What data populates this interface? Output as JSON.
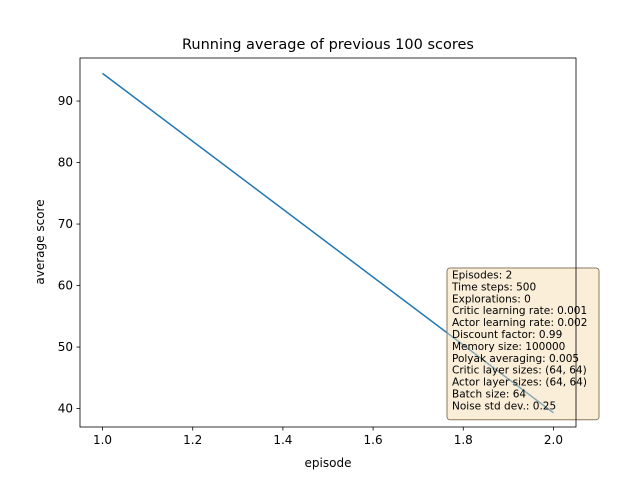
{
  "chart_data": {
    "type": "line",
    "title": "Running average of previous 100 scores",
    "xlabel": "episode",
    "ylabel": "average score",
    "xlim": [
      0.95,
      2.05
    ],
    "ylim": [
      37.0,
      97.0
    ],
    "x_ticks": [
      1.0,
      1.2,
      1.4,
      1.6,
      1.8,
      2.0
    ],
    "x_tick_labels": [
      "1.0",
      "1.2",
      "1.4",
      "1.6",
      "1.8",
      "2.0"
    ],
    "y_ticks": [
      40,
      50,
      60,
      70,
      80,
      90
    ],
    "y_tick_labels": [
      "40",
      "50",
      "60",
      "70",
      "80",
      "90"
    ],
    "grid": false,
    "series": [
      {
        "x": [
          1.0,
          2.0
        ],
        "y": [
          94.5,
          39.3
        ],
        "color": "#1f77b4"
      }
    ],
    "info_box": {
      "placement": "lower-right",
      "background": "#f5deb3",
      "border": "#8a7a5c",
      "lines": [
        "Episodes: 2",
        "Time steps: 500",
        "Explorations: 0",
        "Critic learning rate: 0.001",
        "Actor learning rate: 0.002",
        "Discount factor: 0.99",
        "Memory size: 100000",
        "Polyak averaging: 0.005",
        "Critic layer sizes: (64, 64)",
        "Actor layer sizes: (64, 64)",
        "Batch size: 64",
        "Noise std dev.: 0.25"
      ]
    }
  }
}
